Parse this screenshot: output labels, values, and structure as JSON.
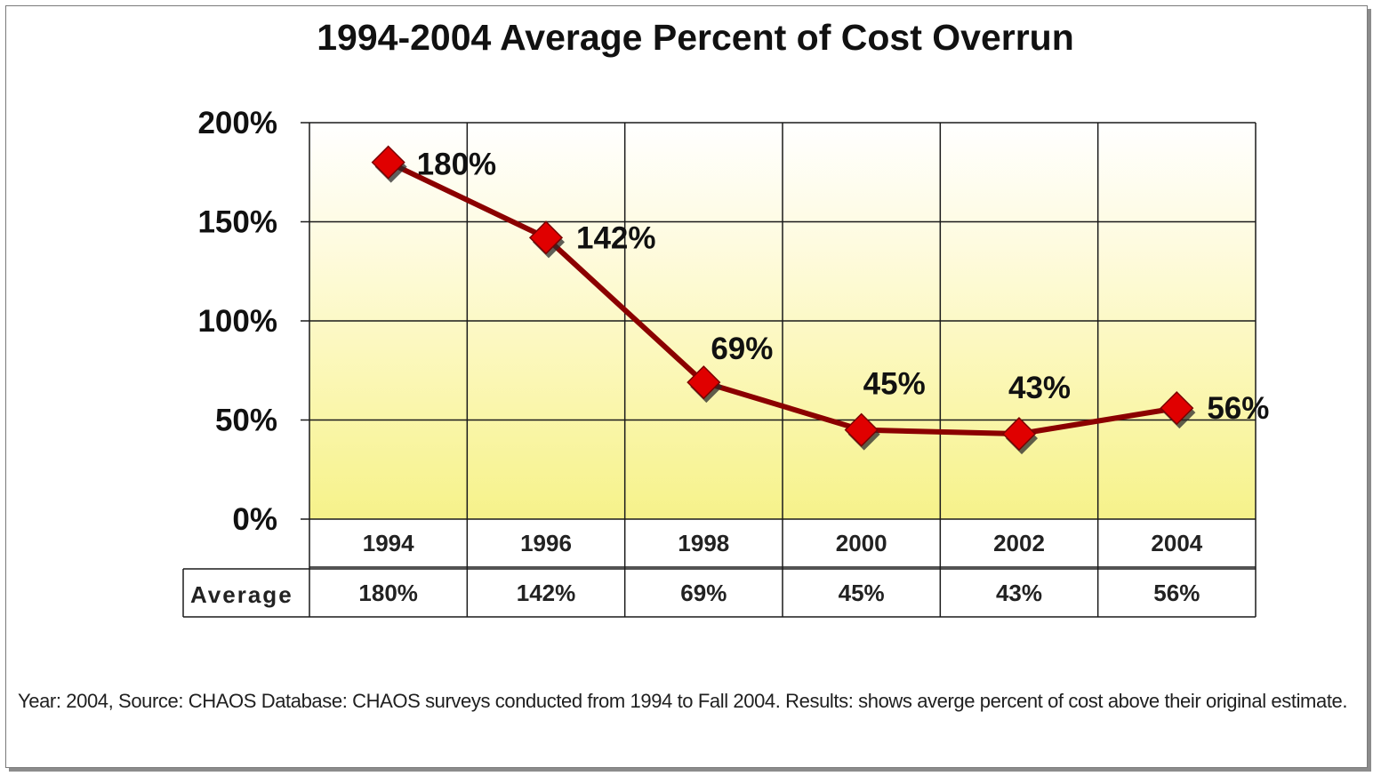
{
  "chart_data": {
    "type": "line",
    "title": "1994-2004 Average Percent of  Cost Overrun",
    "x": [
      "1994",
      "1996",
      "1998",
      "2000",
      "2002",
      "2004"
    ],
    "series": [
      {
        "name": "Average",
        "values": [
          180,
          142,
          69,
          45,
          43,
          56
        ],
        "data_labels": [
          "180%",
          "142%",
          "69%",
          "45%",
          "43%",
          "56%"
        ],
        "color": "#8b0000",
        "marker_color": "#e00000"
      }
    ],
    "y_ticks": [
      0,
      50,
      100,
      150,
      200
    ],
    "y_tick_labels": [
      "0%",
      "50%",
      "100%",
      "150%",
      "200%"
    ],
    "ylim": [
      0,
      200
    ],
    "grid": true,
    "plot_background": "yellow-to-white vertical gradient",
    "data_table": {
      "row_header": "Average",
      "values": [
        "180%",
        "142%",
        "69%",
        "45%",
        "43%",
        "56%"
      ]
    }
  },
  "footnote": "Year: 2004, Source: CHAOS Database: CHAOS surveys conducted from 1994 to Fall 2004. Results: shows averge percent of cost above their original estimate."
}
